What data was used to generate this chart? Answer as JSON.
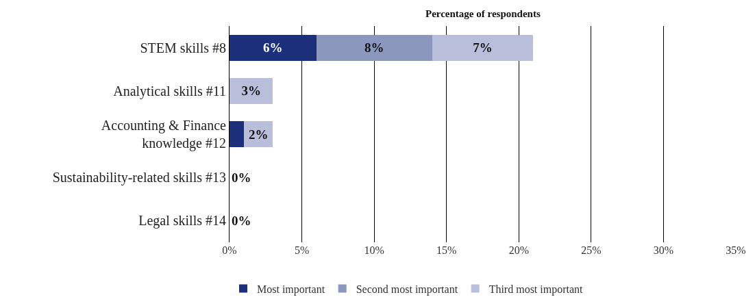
{
  "chart_data": {
    "type": "bar",
    "orientation": "horizontal",
    "stacked": true,
    "xlabel": "Percentage of respondents",
    "categories": [
      "STEM skills #8",
      "Analytical skills #11",
      "Accounting & Finance\nknowledge #12",
      "Sustainability-related skills #13",
      "Legal skills #14"
    ],
    "series": [
      {
        "name": "Most important",
        "color": "#1b2f7a",
        "values": [
          6,
          0,
          1,
          0,
          0
        ],
        "value_labels": [
          "6%",
          null,
          null,
          "0%",
          "0%"
        ]
      },
      {
        "name": "Second most important",
        "color": "#8b97bd",
        "values": [
          8,
          0,
          0,
          0,
          0
        ],
        "value_labels": [
          "8%",
          null,
          null,
          null,
          null
        ]
      },
      {
        "name": "Third most important",
        "color": "#b9bfdb",
        "values": [
          7,
          3,
          2,
          0,
          0
        ],
        "value_labels": [
          "7%",
          "3%",
          "2%",
          null,
          null
        ]
      }
    ],
    "xlim": [
      0,
      35
    ],
    "xticks": [
      {
        "value": 0,
        "label": "0%"
      },
      {
        "value": 5,
        "label": "5%"
      },
      {
        "value": 10,
        "label": "10%"
      },
      {
        "value": 15,
        "label": "15%"
      },
      {
        "value": 20,
        "label": "20%"
      },
      {
        "value": 25,
        "label": "25%"
      },
      {
        "value": 30,
        "label": "30%"
      },
      {
        "value": 35,
        "label": "35%"
      }
    ],
    "grid": "x",
    "legend": "bottom"
  }
}
